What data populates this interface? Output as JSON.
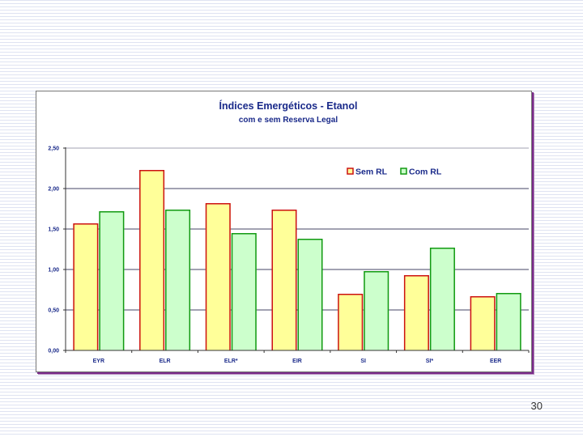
{
  "chart_data": {
    "type": "bar",
    "title": "Índices Emergéticos - Etanol",
    "subtitle": "com e sem Reserva Legal",
    "categories": [
      "EYR",
      "ELR",
      "ELR*",
      "EIR",
      "SI",
      "SI*",
      "EER"
    ],
    "series": [
      {
        "name": "Sem RL",
        "values": [
          1.57,
          2.23,
          1.82,
          1.74,
          0.7,
          0.93,
          0.67
        ],
        "fill": "#ffff99",
        "stroke": "#cc1111"
      },
      {
        "name": "Com RL",
        "values": [
          1.72,
          1.74,
          1.45,
          1.38,
          0.98,
          1.27,
          0.71
        ],
        "fill": "#ccffcc",
        "stroke": "#119911"
      }
    ],
    "ylim": [
      0,
      2.5
    ],
    "yticks": [
      "0,00",
      "0,50",
      "1,00",
      "1,50",
      "2,00",
      "2,50"
    ],
    "ytick_values": [
      0,
      0.5,
      1.0,
      1.5,
      2.0,
      2.5
    ],
    "legend_position": "top-right",
    "gridlines": true
  },
  "slide": {
    "number": "30"
  },
  "colors": {
    "text": "#1a2a8a",
    "grid": "#444466",
    "frame_shadow": "#7a2a8a"
  }
}
